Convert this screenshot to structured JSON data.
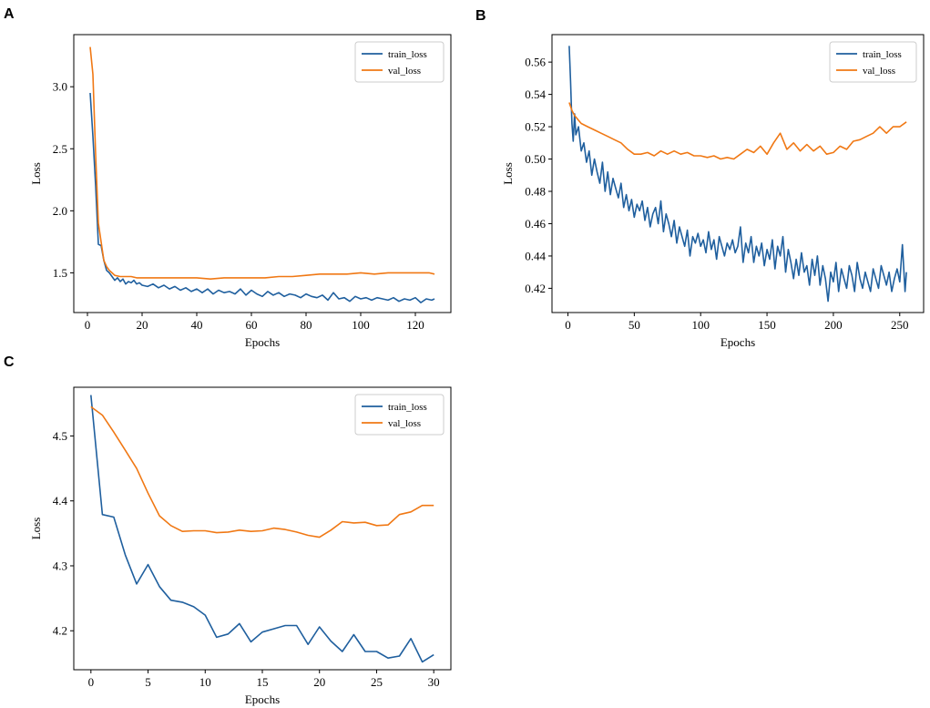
{
  "figure": {
    "panel_labels": [
      "A",
      "B",
      "C"
    ]
  },
  "colors": {
    "train": "#1f5f9e",
    "val": "#f07814"
  },
  "chart_data": [
    {
      "panel": "A",
      "type": "line",
      "xlabel": "Epochs",
      "ylabel": "Loss",
      "xlim": [
        -5,
        133
      ],
      "ylim": [
        1.18,
        3.42
      ],
      "xticks": [
        0,
        20,
        40,
        60,
        80,
        100,
        120
      ],
      "yticks": [
        1.5,
        2.0,
        2.5,
        3.0
      ],
      "ytick_format": "1",
      "legend": {
        "location": "top-right",
        "entries": [
          "train_loss",
          "val_loss"
        ]
      },
      "series": [
        {
          "name": "train_loss",
          "x": [
            1,
            2,
            3,
            4,
            5,
            6,
            7,
            8,
            9,
            10,
            11,
            12,
            13,
            14,
            15,
            16,
            17,
            18,
            19,
            20,
            22,
            24,
            26,
            28,
            30,
            32,
            34,
            36,
            38,
            40,
            42,
            44,
            46,
            48,
            50,
            52,
            54,
            56,
            58,
            60,
            62,
            64,
            66,
            68,
            70,
            72,
            74,
            76,
            78,
            80,
            82,
            84,
            86,
            88,
            90,
            92,
            94,
            96,
            98,
            100,
            102,
            104,
            106,
            108,
            110,
            112,
            114,
            116,
            118,
            120,
            122,
            124,
            126,
            127
          ],
          "values": [
            2.95,
            2.6,
            2.2,
            1.73,
            1.72,
            1.6,
            1.52,
            1.5,
            1.47,
            1.44,
            1.46,
            1.43,
            1.45,
            1.41,
            1.43,
            1.42,
            1.44,
            1.41,
            1.42,
            1.4,
            1.39,
            1.41,
            1.38,
            1.4,
            1.37,
            1.39,
            1.36,
            1.38,
            1.35,
            1.37,
            1.34,
            1.37,
            1.33,
            1.36,
            1.34,
            1.35,
            1.33,
            1.37,
            1.32,
            1.36,
            1.33,
            1.31,
            1.35,
            1.32,
            1.34,
            1.31,
            1.33,
            1.32,
            1.3,
            1.33,
            1.31,
            1.3,
            1.32,
            1.28,
            1.34,
            1.29,
            1.3,
            1.27,
            1.31,
            1.29,
            1.3,
            1.28,
            1.3,
            1.29,
            1.28,
            1.3,
            1.27,
            1.29,
            1.28,
            1.3,
            1.26,
            1.29,
            1.28,
            1.29
          ]
        },
        {
          "name": "val_loss",
          "x": [
            1,
            2,
            3,
            4,
            5,
            6,
            7,
            8,
            9,
            10,
            12,
            14,
            16,
            18,
            20,
            25,
            30,
            35,
            40,
            45,
            50,
            55,
            60,
            65,
            70,
            75,
            80,
            85,
            90,
            95,
            100,
            105,
            110,
            115,
            120,
            125,
            127
          ],
          "values": [
            3.32,
            3.1,
            2.45,
            1.9,
            1.75,
            1.6,
            1.55,
            1.52,
            1.5,
            1.48,
            1.47,
            1.47,
            1.47,
            1.46,
            1.46,
            1.46,
            1.46,
            1.46,
            1.46,
            1.45,
            1.46,
            1.46,
            1.46,
            1.46,
            1.47,
            1.47,
            1.48,
            1.49,
            1.49,
            1.49,
            1.5,
            1.49,
            1.5,
            1.5,
            1.5,
            1.5,
            1.49
          ]
        }
      ]
    },
    {
      "panel": "B",
      "type": "line",
      "xlabel": "Epochs",
      "ylabel": "Loss",
      "xlim": [
        -12,
        268
      ],
      "ylim": [
        0.405,
        0.577
      ],
      "xticks": [
        0,
        50,
        100,
        150,
        200,
        250
      ],
      "yticks": [
        0.42,
        0.44,
        0.46,
        0.48,
        0.5,
        0.52,
        0.54,
        0.56
      ],
      "ytick_format": "2",
      "legend": {
        "location": "top-right",
        "entries": [
          "train_loss",
          "val_loss"
        ]
      },
      "series": [
        {
          "name": "train_loss",
          "x": [
            1,
            2,
            3,
            4,
            5,
            6,
            8,
            10,
            12,
            14,
            16,
            18,
            20,
            22,
            24,
            26,
            28,
            30,
            32,
            34,
            36,
            38,
            40,
            42,
            44,
            46,
            48,
            50,
            52,
            54,
            56,
            58,
            60,
            62,
            64,
            66,
            68,
            70,
            72,
            74,
            76,
            78,
            80,
            82,
            84,
            86,
            88,
            90,
            92,
            94,
            96,
            98,
            100,
            102,
            104,
            106,
            108,
            110,
            112,
            114,
            116,
            118,
            120,
            122,
            124,
            126,
            128,
            130,
            132,
            134,
            136,
            138,
            140,
            142,
            144,
            146,
            148,
            150,
            152,
            154,
            156,
            158,
            160,
            162,
            164,
            166,
            168,
            170,
            172,
            174,
            176,
            178,
            180,
            182,
            184,
            186,
            188,
            190,
            192,
            194,
            196,
            198,
            200,
            202,
            204,
            206,
            208,
            210,
            212,
            214,
            216,
            218,
            220,
            222,
            224,
            226,
            228,
            230,
            232,
            234,
            236,
            238,
            240,
            242,
            244,
            246,
            248,
            250,
            252,
            254,
            255
          ],
          "values": [
            0.57,
            0.548,
            0.522,
            0.511,
            0.528,
            0.515,
            0.52,
            0.505,
            0.51,
            0.498,
            0.505,
            0.49,
            0.5,
            0.492,
            0.485,
            0.498,
            0.48,
            0.492,
            0.478,
            0.488,
            0.482,
            0.476,
            0.485,
            0.47,
            0.478,
            0.468,
            0.475,
            0.464,
            0.472,
            0.468,
            0.474,
            0.462,
            0.47,
            0.458,
            0.466,
            0.47,
            0.46,
            0.474,
            0.455,
            0.466,
            0.46,
            0.452,
            0.462,
            0.448,
            0.458,
            0.452,
            0.446,
            0.456,
            0.44,
            0.452,
            0.448,
            0.454,
            0.446,
            0.45,
            0.442,
            0.455,
            0.444,
            0.45,
            0.438,
            0.452,
            0.446,
            0.44,
            0.448,
            0.444,
            0.45,
            0.442,
            0.446,
            0.458,
            0.436,
            0.448,
            0.442,
            0.452,
            0.436,
            0.446,
            0.44,
            0.448,
            0.434,
            0.444,
            0.438,
            0.45,
            0.432,
            0.446,
            0.44,
            0.452,
            0.43,
            0.444,
            0.436,
            0.426,
            0.438,
            0.428,
            0.442,
            0.43,
            0.434,
            0.422,
            0.438,
            0.428,
            0.44,
            0.422,
            0.434,
            0.426,
            0.412,
            0.43,
            0.424,
            0.436,
            0.418,
            0.432,
            0.426,
            0.42,
            0.434,
            0.428,
            0.418,
            0.436,
            0.426,
            0.42,
            0.43,
            0.424,
            0.418,
            0.432,
            0.426,
            0.42,
            0.434,
            0.428,
            0.422,
            0.43,
            0.418,
            0.426,
            0.432,
            0.424,
            0.447,
            0.418,
            0.43
          ]
        },
        {
          "name": "val_loss",
          "x": [
            1,
            3,
            5,
            8,
            10,
            15,
            20,
            25,
            30,
            35,
            40,
            45,
            50,
            55,
            60,
            65,
            70,
            75,
            80,
            85,
            90,
            95,
            100,
            105,
            110,
            115,
            120,
            125,
            130,
            135,
            140,
            145,
            150,
            155,
            160,
            165,
            170,
            175,
            180,
            185,
            190,
            195,
            200,
            205,
            210,
            215,
            220,
            225,
            230,
            235,
            240,
            245,
            250,
            255
          ],
          "values": [
            0.535,
            0.53,
            0.527,
            0.524,
            0.522,
            0.52,
            0.518,
            0.516,
            0.514,
            0.512,
            0.51,
            0.506,
            0.503,
            0.503,
            0.504,
            0.502,
            0.505,
            0.503,
            0.505,
            0.503,
            0.504,
            0.502,
            0.502,
            0.501,
            0.502,
            0.5,
            0.501,
            0.5,
            0.503,
            0.506,
            0.504,
            0.508,
            0.503,
            0.51,
            0.516,
            0.506,
            0.51,
            0.505,
            0.509,
            0.505,
            0.508,
            0.503,
            0.504,
            0.508,
            0.506,
            0.511,
            0.512,
            0.514,
            0.516,
            0.52,
            0.516,
            0.52,
            0.52,
            0.523
          ]
        }
      ]
    },
    {
      "panel": "C",
      "type": "line",
      "xlabel": "Epochs",
      "ylabel": "Loss",
      "xlim": [
        -1.5,
        31.5
      ],
      "ylim": [
        4.14,
        4.575
      ],
      "xticks": [
        0,
        5,
        10,
        15,
        20,
        25,
        30
      ],
      "yticks": [
        4.2,
        4.3,
        4.4,
        4.5
      ],
      "ytick_format": "1",
      "legend": {
        "location": "top-right",
        "entries": [
          "train_loss",
          "val_loss"
        ]
      },
      "series": [
        {
          "name": "train_loss",
          "x": [
            0,
            1,
            2,
            3,
            4,
            5,
            6,
            7,
            8,
            9,
            10,
            11,
            12,
            13,
            14,
            15,
            16,
            17,
            18,
            19,
            20,
            21,
            22,
            23,
            24,
            25,
            26,
            27,
            28,
            29,
            30
          ],
          "values": [
            4.563,
            4.379,
            4.375,
            4.317,
            4.272,
            4.302,
            4.268,
            4.247,
            4.244,
            4.237,
            4.224,
            4.19,
            4.195,
            4.211,
            4.183,
            4.198,
            4.203,
            4.208,
            4.208,
            4.179,
            4.206,
            4.184,
            4.168,
            4.194,
            4.168,
            4.168,
            4.158,
            4.161,
            4.188,
            4.152,
            4.163
          ]
        },
        {
          "name": "val_loss",
          "x": [
            0,
            1,
            2,
            3,
            4,
            5,
            6,
            7,
            8,
            9,
            10,
            11,
            12,
            13,
            14,
            15,
            16,
            17,
            18,
            19,
            20,
            21,
            22,
            23,
            24,
            25,
            26,
            27,
            28,
            29,
            30
          ],
          "values": [
            4.545,
            4.532,
            4.506,
            4.478,
            4.45,
            4.412,
            4.377,
            4.362,
            4.353,
            4.354,
            4.354,
            4.351,
            4.352,
            4.355,
            4.353,
            4.354,
            4.358,
            4.356,
            4.352,
            4.347,
            4.344,
            4.355,
            4.368,
            4.366,
            4.367,
            4.362,
            4.363,
            4.379,
            4.383,
            4.393,
            4.393
          ]
        }
      ]
    }
  ]
}
